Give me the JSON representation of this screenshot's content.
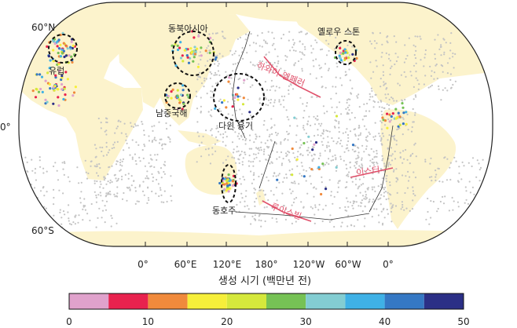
{
  "map": {
    "lat_labels": [
      "60°N",
      "0°",
      "60°S"
    ],
    "lon_labels": [
      "0°",
      "60°E",
      "120°E",
      "180°",
      "120°W",
      "60°W",
      "0°"
    ],
    "regions": {
      "europe": "유럽",
      "northeast_asia": "동북아시아",
      "south_china_sea": "남중국해",
      "darwin_rise": "다윈 융기",
      "east_australia": "동호주",
      "yellowstone": "옐로우 스톤"
    },
    "hotspot_chains": {
      "hawaii_emperor": "하와이-엠페러",
      "easter": "이스터",
      "louisville": "루이스빌"
    },
    "colors": {
      "ocean": "#ffffff",
      "land": "#fcf3cc",
      "seamount_points": "#c4c4c4",
      "outline": "#222222",
      "chain_label": "#e0506a"
    }
  },
  "legend": {
    "title": "생성 시기 (백만년 전)",
    "ticks": [
      "0",
      "10",
      "20",
      "30",
      "40",
      "50"
    ],
    "range": [
      0,
      50
    ],
    "bins": [
      {
        "from": 0,
        "to": 5,
        "color": "#e0a2cc"
      },
      {
        "from": 5,
        "to": 10,
        "color": "#e8224e"
      },
      {
        "from": 10,
        "to": 15,
        "color": "#f08a3c"
      },
      {
        "from": 15,
        "to": 20,
        "color": "#f6ef3a"
      },
      {
        "from": 20,
        "to": 25,
        "color": "#d5e83c"
      },
      {
        "from": 25,
        "to": 30,
        "color": "#76c255"
      },
      {
        "from": 30,
        "to": 35,
        "color": "#83cdd2"
      },
      {
        "from": 35,
        "to": 40,
        "color": "#3fb1e6"
      },
      {
        "from": 40,
        "to": 45,
        "color": "#3578c4"
      },
      {
        "from": 45,
        "to": 50,
        "color": "#2b2f86"
      }
    ]
  }
}
